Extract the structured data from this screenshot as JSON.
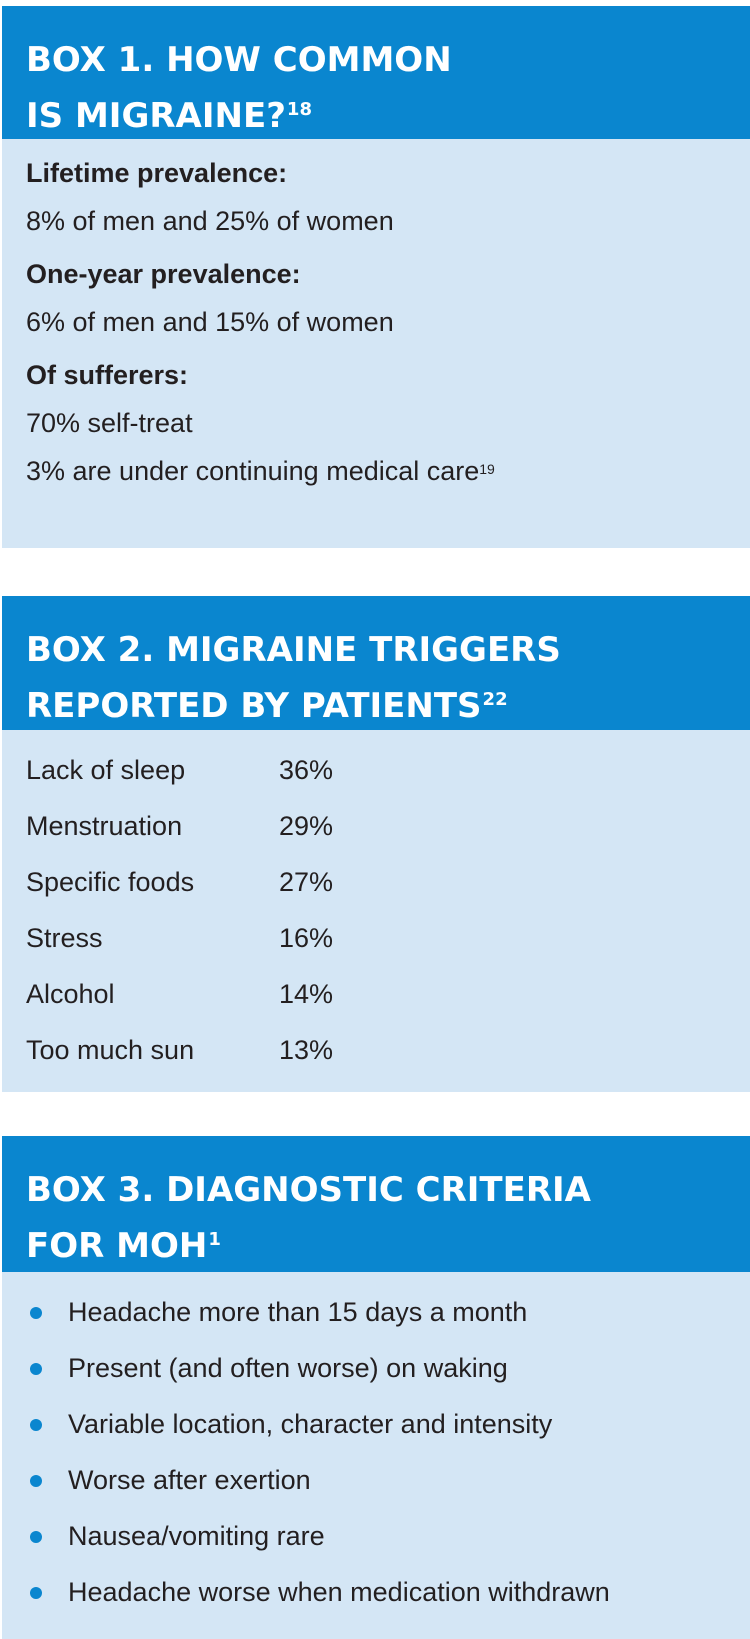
{
  "box1": {
    "title_line1": "BOX 1. HOW COMMON",
    "title_line2": "IS MIGRAINE?",
    "title_ref": "18",
    "groups": [
      {
        "label": "Lifetime prevalence:",
        "lines": [
          "8% of men and 25% of women"
        ]
      },
      {
        "label": "One-year prevalence:",
        "lines": [
          "6% of men and 15% of women"
        ]
      },
      {
        "label": "Of sufferers:",
        "lines": [
          "70% self-treat",
          "3% are under continuing medical care"
        ]
      }
    ],
    "last_line_ref": "19"
  },
  "box2": {
    "title_line1": "BOX 2. MIGRAINE TRIGGERS",
    "title_line2": "REPORTED BY PATIENTS",
    "title_ref": "22",
    "rows": [
      {
        "name": "Lack of sleep",
        "pct": "36%"
      },
      {
        "name": "Menstruation",
        "pct": "29%"
      },
      {
        "name": "Specific foods",
        "pct": "27%"
      },
      {
        "name": "Stress",
        "pct": "16%"
      },
      {
        "name": "Alcohol",
        "pct": "14%"
      },
      {
        "name": "Too much sun",
        "pct": "13%"
      }
    ]
  },
  "box3": {
    "title_line1": "BOX 3. DIAGNOSTIC CRITERIA",
    "title_line2": "FOR MOH",
    "title_ref": "1",
    "items": [
      "Headache more than 15 days a month",
      "Present (and often worse) on waking",
      "Variable location, character and intensity",
      "Worse after exertion",
      "Nausea/vomiting rare",
      "Headache worse when medication withdrawn"
    ]
  },
  "colors": {
    "header_blue": "#0a86cf",
    "panel_light_blue": "#d4e6f5",
    "text": "#231f20",
    "bullet": "#0a86cf"
  }
}
